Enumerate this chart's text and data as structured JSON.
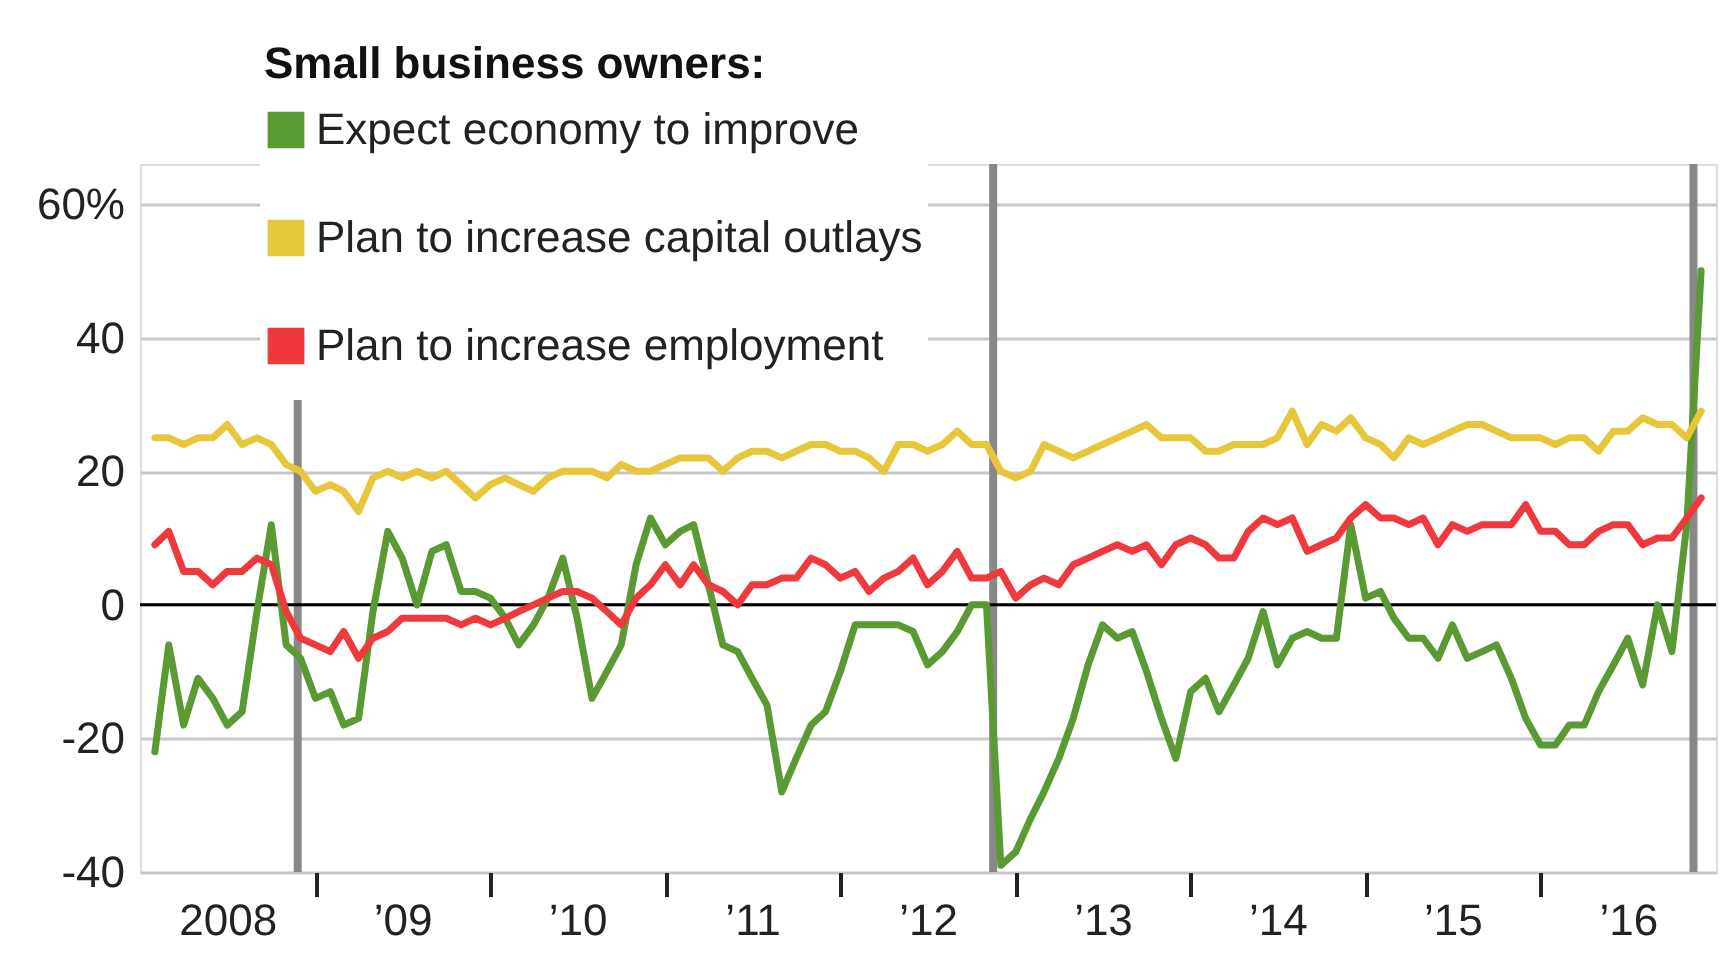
{
  "chart_data": {
    "type": "line",
    "legend_title": "Small business owners:",
    "x": [
      "2008-02",
      "2008-03",
      "2008-04",
      "2008-05",
      "2008-06",
      "2008-07",
      "2008-08",
      "2008-09",
      "2008-10",
      "2008-11",
      "2008-12",
      "2009-01",
      "2009-02",
      "2009-03",
      "2009-04",
      "2009-05",
      "2009-06",
      "2009-07",
      "2009-08",
      "2009-09",
      "2009-10",
      "2009-11",
      "2009-12",
      "2010-01",
      "2010-02",
      "2010-03",
      "2010-04",
      "2010-05",
      "2010-06",
      "2010-07",
      "2010-08",
      "2010-09",
      "2010-10",
      "2010-11",
      "2010-12",
      "2011-01",
      "2011-02",
      "2011-03",
      "2011-04",
      "2011-05",
      "2011-06",
      "2011-07",
      "2011-08",
      "2011-09",
      "2011-10",
      "2011-11",
      "2011-12",
      "2012-01",
      "2012-02",
      "2012-03",
      "2012-04",
      "2012-05",
      "2012-06",
      "2012-07",
      "2012-08",
      "2012-09",
      "2012-10",
      "2012-11",
      "2012-12",
      "2013-01",
      "2013-02",
      "2013-03",
      "2013-04",
      "2013-05",
      "2013-06",
      "2013-07",
      "2013-08",
      "2013-09",
      "2013-10",
      "2013-11",
      "2013-12",
      "2014-01",
      "2014-02",
      "2014-03",
      "2014-04",
      "2014-05",
      "2014-06",
      "2014-07",
      "2014-08",
      "2014-09",
      "2014-10",
      "2014-11",
      "2014-12",
      "2015-01",
      "2015-02",
      "2015-03",
      "2015-04",
      "2015-05",
      "2015-06",
      "2015-07",
      "2015-08",
      "2015-09",
      "2015-10",
      "2015-11",
      "2015-12",
      "2016-01",
      "2016-02",
      "2016-03",
      "2016-04",
      "2016-05",
      "2016-06",
      "2016-07",
      "2016-08",
      "2016-09",
      "2016-10",
      "2016-11",
      "2016-12"
    ],
    "series": [
      {
        "name": "Expect economy to improve",
        "color": "#5a9a32",
        "values": [
          -22,
          -6,
          -18,
          -11,
          -14,
          -18,
          -16,
          -1,
          12,
          -6,
          -8,
          -14,
          -13,
          -18,
          -17,
          -1,
          11,
          7,
          0,
          8,
          9,
          2,
          2,
          1,
          -2,
          -6,
          -3,
          1,
          7,
          -2,
          -14,
          -10,
          -6,
          6,
          13,
          9,
          11,
          12,
          3,
          -6,
          -7,
          -11,
          -15,
          -28,
          -23,
          -18,
          -16,
          -10,
          -3,
          -3,
          -3,
          -3,
          -4,
          -9,
          -7,
          -4,
          0,
          0,
          -39,
          -37,
          -32,
          -28,
          -23,
          -17,
          -9,
          -3,
          -5,
          -4,
          -10,
          -17,
          -23,
          -13,
          -11,
          -16,
          -12,
          -8,
          -1,
          -9,
          -5,
          -4,
          -5,
          -5,
          12,
          1,
          2,
          -2,
          -5,
          -5,
          -8,
          -3,
          -8,
          -7,
          -6,
          -11,
          -17,
          -21,
          -21,
          -18,
          -18,
          -13,
          -9,
          -5,
          -12,
          0,
          -7,
          12,
          50
        ]
      },
      {
        "name": "Plan to increase capital outlays",
        "color": "#e8c63a",
        "values": [
          25,
          25,
          24,
          25,
          25,
          27,
          24,
          25,
          24,
          21,
          20,
          17,
          18,
          17,
          14,
          19,
          20,
          19,
          20,
          19,
          20,
          18,
          16,
          18,
          19,
          18,
          17,
          19,
          20,
          20,
          20,
          19,
          21,
          20,
          20,
          21,
          22,
          22,
          22,
          20,
          22,
          23,
          23,
          22,
          23,
          24,
          24,
          23,
          23,
          22,
          20,
          24,
          24,
          23,
          24,
          26,
          24,
          24,
          20,
          19,
          20,
          24,
          23,
          22,
          23,
          24,
          25,
          26,
          27,
          25,
          25,
          25,
          23,
          23,
          24,
          24,
          24,
          25,
          29,
          24,
          27,
          26,
          28,
          25,
          24,
          22,
          25,
          24,
          25,
          26,
          27,
          27,
          26,
          25,
          25,
          25,
          24,
          25,
          25,
          23,
          26,
          26,
          28,
          27,
          27,
          25,
          29
        ]
      },
      {
        "name": "Plan to increase employment",
        "color": "#f0393c",
        "values": [
          9,
          11,
          5,
          5,
          3,
          5,
          5,
          7,
          6,
          -1,
          -5,
          -6,
          -7,
          -4,
          -8,
          -5,
          -4,
          -2,
          -2,
          -2,
          -2,
          -3,
          -2,
          -3,
          -2,
          -1,
          0,
          1,
          2,
          2,
          1,
          -1,
          -3,
          1,
          3,
          6,
          3,
          6,
          3,
          2,
          0,
          3,
          3,
          4,
          4,
          7,
          6,
          4,
          5,
          2,
          4,
          5,
          7,
          3,
          5,
          8,
          4,
          4,
          5,
          1,
          3,
          4,
          3,
          6,
          7,
          8,
          9,
          8,
          9,
          6,
          9,
          10,
          9,
          7,
          7,
          11,
          13,
          12,
          13,
          8,
          9,
          10,
          13,
          15,
          13,
          13,
          12,
          13,
          9,
          12,
          11,
          12,
          12,
          12,
          15,
          11,
          11,
          9,
          9,
          11,
          12,
          12,
          9,
          10,
          10,
          13,
          16
        ]
      }
    ],
    "xlim": [
      "2008-01-01",
      "2017-01-01"
    ],
    "xticks": [
      {
        "value": "2008-07-01",
        "label": "2008"
      },
      {
        "value": "2009-01-01",
        "label": null
      },
      {
        "value": "2009-07-01",
        "label": "’09"
      },
      {
        "value": "2010-01-01",
        "label": null
      },
      {
        "value": "2010-07-01",
        "label": "’10"
      },
      {
        "value": "2011-01-01",
        "label": null
      },
      {
        "value": "2011-07-01",
        "label": "’11"
      },
      {
        "value": "2012-01-01",
        "label": null
      },
      {
        "value": "2012-07-01",
        "label": "’12"
      },
      {
        "value": "2013-01-01",
        "label": null
      },
      {
        "value": "2013-07-01",
        "label": "’13"
      },
      {
        "value": "2014-01-01",
        "label": null
      },
      {
        "value": "2014-07-01",
        "label": "’14"
      },
      {
        "value": "2015-01-01",
        "label": null
      },
      {
        "value": "2015-07-01",
        "label": "’15"
      },
      {
        "value": "2016-01-01",
        "label": null
      },
      {
        "value": "2016-07-01",
        "label": "’16"
      }
    ],
    "ylim": [
      -40,
      66
    ],
    "yticks": [
      {
        "value": 60,
        "label": "60%"
      },
      40,
      20,
      0,
      -20,
      -40
    ],
    "grid": "y",
    "legend": "top left",
    "ref_lines": [
      {
        "axis": "x",
        "value": "2008-11-25",
        "color": "#888888"
      },
      {
        "axis": "x",
        "value": "2012-11-15",
        "color": "#888888"
      },
      {
        "axis": "x",
        "value": "2016-11-15",
        "color": "#888888"
      },
      {
        "axis": "y",
        "value": 0,
        "color": "#000000"
      }
    ]
  }
}
